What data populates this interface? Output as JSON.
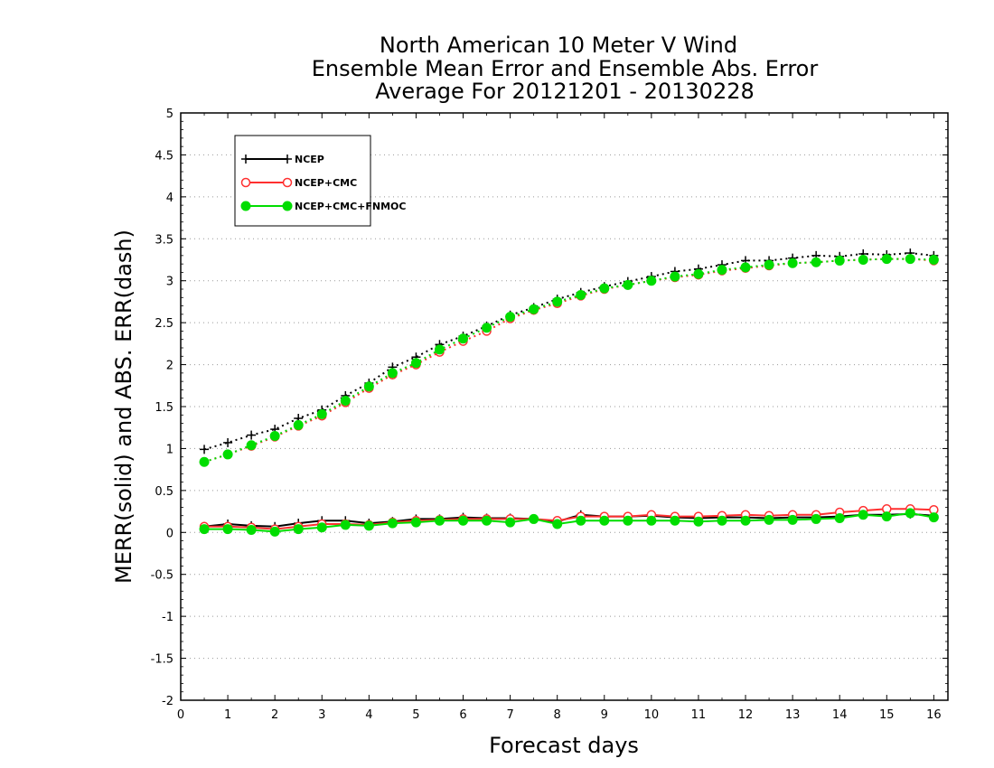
{
  "chart_data": {
    "type": "line",
    "title_lines": [
      "North American 10 Meter V Wind",
      "Ensemble Mean Error and Ensemble Abs. Error",
      "Average For 20121201 - 20130228"
    ],
    "xlabel": "Forecast days",
    "ylabel": "MERR(solid) and ABS. ERR(dash)",
    "xlim": [
      0,
      16.3
    ],
    "ylim": [
      -2,
      5
    ],
    "xticks": [
      "0",
      "1",
      "2",
      "3",
      "4",
      "5",
      "6",
      "7",
      "8",
      "9",
      "10",
      "11",
      "12",
      "13",
      "14",
      "15",
      "16"
    ],
    "yticks": [
      "5",
      "4.5",
      "4",
      "3.5",
      "3",
      "2.5",
      "2",
      "1.5",
      "1",
      "0.5",
      "0",
      "-0.5",
      "-1",
      "-1.5",
      "-2"
    ],
    "grid": "dotted horizontal",
    "legend_position": "top-left",
    "x": [
      0.5,
      1,
      1.5,
      2,
      2.5,
      3,
      3.5,
      4,
      4.5,
      5,
      5.5,
      6,
      6.5,
      7,
      7.5,
      8,
      8.5,
      9,
      9.5,
      10,
      10.5,
      11,
      11.5,
      12,
      12.5,
      13,
      13.5,
      14,
      14.5,
      15,
      15.5,
      16
    ],
    "series": [
      {
        "name": "NCEP",
        "color": "#000000",
        "marker": "plus",
        "merr": [
          0.07,
          0.1,
          0.08,
          0.07,
          0.11,
          0.14,
          0.14,
          0.11,
          0.13,
          0.16,
          0.16,
          0.18,
          0.17,
          0.17,
          0.16,
          0.13,
          0.21,
          0.19,
          0.19,
          0.2,
          0.18,
          0.17,
          0.18,
          0.18,
          0.17,
          0.18,
          0.18,
          0.19,
          0.21,
          0.21,
          0.22,
          0.2
        ],
        "abserr": [
          0.99,
          1.07,
          1.16,
          1.23,
          1.36,
          1.46,
          1.63,
          1.78,
          1.97,
          2.09,
          2.24,
          2.34,
          2.46,
          2.59,
          2.68,
          2.78,
          2.86,
          2.93,
          2.99,
          3.05,
          3.11,
          3.14,
          3.19,
          3.24,
          3.24,
          3.27,
          3.3,
          3.29,
          3.32,
          3.31,
          3.33,
          3.3
        ]
      },
      {
        "name": "NCEP+CMC",
        "color": "#ff3030",
        "marker": "circle-open",
        "merr": [
          0.07,
          0.07,
          0.06,
          0.04,
          0.07,
          0.1,
          0.1,
          0.09,
          0.12,
          0.14,
          0.15,
          0.16,
          0.16,
          0.16,
          0.16,
          0.14,
          0.19,
          0.19,
          0.19,
          0.21,
          0.19,
          0.19,
          0.2,
          0.21,
          0.2,
          0.21,
          0.21,
          0.24,
          0.26,
          0.28,
          0.28,
          0.27
        ],
        "abserr": [
          0.84,
          0.93,
          1.03,
          1.14,
          1.27,
          1.39,
          1.55,
          1.72,
          1.88,
          2.0,
          2.15,
          2.28,
          2.4,
          2.55,
          2.65,
          2.73,
          2.82,
          2.9,
          2.95,
          3.0,
          3.04,
          3.07,
          3.12,
          3.15,
          3.18,
          3.21,
          3.22,
          3.24,
          3.25,
          3.26,
          3.26,
          3.24
        ]
      },
      {
        "name": "NCEP+CMC+FNMOC",
        "color": "#00dd00",
        "marker": "circle-filled",
        "merr": [
          0.04,
          0.04,
          0.03,
          0.01,
          0.04,
          0.06,
          0.09,
          0.08,
          0.11,
          0.12,
          0.14,
          0.14,
          0.14,
          0.12,
          0.16,
          0.1,
          0.14,
          0.14,
          0.14,
          0.14,
          0.14,
          0.13,
          0.14,
          0.14,
          0.15,
          0.15,
          0.16,
          0.17,
          0.21,
          0.19,
          0.23,
          0.18
        ],
        "abserr": [
          0.84,
          0.93,
          1.04,
          1.15,
          1.28,
          1.41,
          1.57,
          1.74,
          1.9,
          2.02,
          2.18,
          2.31,
          2.44,
          2.57,
          2.66,
          2.75,
          2.83,
          2.91,
          2.95,
          3.0,
          3.05,
          3.08,
          3.13,
          3.16,
          3.19,
          3.21,
          3.22,
          3.24,
          3.25,
          3.26,
          3.26,
          3.25
        ]
      }
    ]
  }
}
